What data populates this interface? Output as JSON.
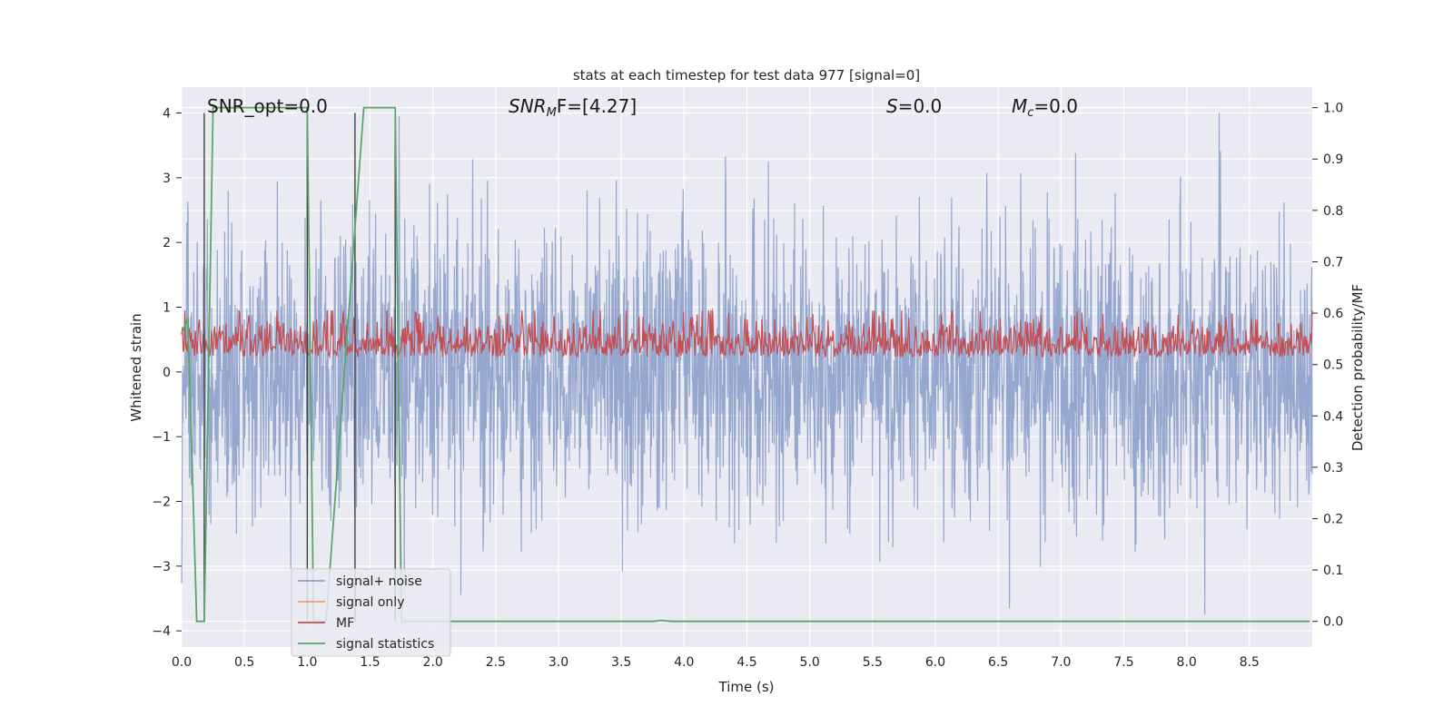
{
  "chart_data": {
    "type": "line",
    "title": "stats at each timestep for test data 977 [signal=0]",
    "xlabel": "Time (s)",
    "ylabel_left": "Whitened strain",
    "ylabel_right": "Detection probability/MF",
    "xlim": [
      0.0,
      9.0
    ],
    "ylim_left": [
      -4.25,
      4.4
    ],
    "ylim_right": [
      -0.05,
      1.04
    ],
    "x_ticks": [
      "0.0",
      "0.5",
      "1.0",
      "1.5",
      "2.0",
      "2.5",
      "3.0",
      "3.5",
      "4.0",
      "4.5",
      "5.0",
      "5.5",
      "6.0",
      "6.5",
      "7.0",
      "7.5",
      "8.0",
      "8.5"
    ],
    "y_left_ticks": [
      "4",
      "3",
      "2",
      "1",
      "0",
      "−1",
      "−2",
      "−3",
      "−4"
    ],
    "y_right_ticks": [
      "1.0",
      "0.9",
      "0.8",
      "0.7",
      "0.6",
      "0.5",
      "0.4",
      "0.3",
      "0.2",
      "0.1",
      "0.0"
    ],
    "grid": true,
    "legend_position": "lower-left",
    "annotations": {
      "snr_opt": "SNR_opt=0.0",
      "snr_mf_main": "SNR",
      "snr_mf_sub": "M",
      "snr_mf_rest": "F=[4.27]",
      "s_italic": "S",
      "s_rest": "=0.0",
      "mc_main": "M",
      "mc_sub": "c",
      "mc_rest": "=0.0"
    },
    "series": [
      {
        "name": "signal+ noise",
        "axis": "left",
        "color": "#8da0cb",
        "noise_description_values": {
          "duration_s": 9.0,
          "std": 1.0,
          "peak_max": 4.0,
          "peak_min": -3.75
        }
      },
      {
        "name": "signal only",
        "axis": "left",
        "color": "#e8a07a",
        "values_constant": 0.0
      },
      {
        "name": "MF",
        "axis": "right",
        "color": "#c44e52",
        "typical_range": [
          0.5,
          0.62
        ]
      },
      {
        "name": "signal statistics",
        "axis": "right",
        "color": "#55a868",
        "x": [
          0.0,
          0.05,
          0.12,
          0.18,
          0.25,
          1.0,
          1.05,
          1.15,
          1.45,
          1.7,
          1.75,
          1.85,
          3.75,
          3.82,
          3.9,
          8.98
        ],
        "y": [
          0.56,
          0.59,
          0.0,
          0.0,
          1.0,
          1.0,
          0.0,
          0.0,
          1.0,
          1.0,
          0.0,
          0.0,
          0.0,
          0.002,
          0.0,
          0.0
        ]
      }
    ],
    "vertical_markers_s": [
      0.18,
      1.0,
      1.38,
      1.7
    ]
  },
  "colors": {
    "plot_bg": "#eaeaf2",
    "grid": "#ffffff",
    "noise": "#8da0cb",
    "mf": "#c44e52",
    "stats": "#55a868",
    "marker": "#404040"
  }
}
